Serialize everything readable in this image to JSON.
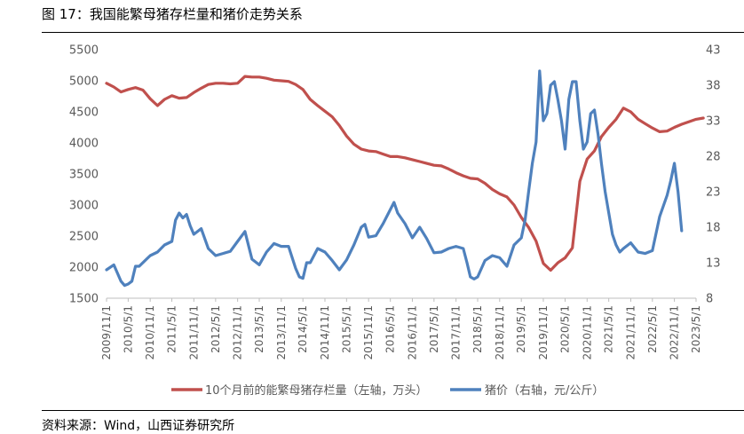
{
  "figure": {
    "title": "图 17：我国能繁母猪存栏量和猪价走势关系",
    "source": "资料来源：Wind，山西证券研究所"
  },
  "chart_data": {
    "type": "line",
    "x_tick_labels": [
      "2009/11/1",
      "2010/5/1",
      "2010/11/1",
      "2011/5/1",
      "2011/11/1",
      "2012/5/1",
      "2012/11/1",
      "2013/5/1",
      "2013/11/1",
      "2014/5/1",
      "2014/11/1",
      "2015/5/1",
      "2015/11/1",
      "2016/5/1",
      "2016/11/1",
      "2017/5/1",
      "2017/11/1",
      "2018/5/1",
      "2018/11/1",
      "2019/5/1",
      "2019/11/1",
      "2020/5/1",
      "2020/11/1",
      "2021/5/1",
      "2021/11/1",
      "2022/5/1",
      "2022/11/1",
      "2023/5/1"
    ],
    "y_left": {
      "range": [
        1500,
        5500
      ],
      "ticks": [
        1500,
        2000,
        2500,
        3000,
        3500,
        4000,
        4500,
        5000,
        5500
      ]
    },
    "y_right": {
      "range": [
        8,
        43
      ],
      "ticks": [
        8,
        13,
        18,
        23,
        28,
        33,
        38,
        43
      ]
    },
    "grid": false,
    "legend_position": "bottom",
    "colors": {
      "sows": "#c0504d",
      "hog": "#4f81bd"
    },
    "series": [
      {
        "name": "10个月前的能繁母猪存栏量（左轴，万头）",
        "axis": "left",
        "points": [
          [
            "2009/11/1",
            4960
          ],
          [
            "2010/1/1",
            4900
          ],
          [
            "2010/3/1",
            4820
          ],
          [
            "2010/5/1",
            4860
          ],
          [
            "2010/7/1",
            4890
          ],
          [
            "2010/9/1",
            4850
          ],
          [
            "2010/11/1",
            4710
          ],
          [
            "2011/1/1",
            4600
          ],
          [
            "2011/3/1",
            4700
          ],
          [
            "2011/5/1",
            4760
          ],
          [
            "2011/7/1",
            4720
          ],
          [
            "2011/9/1",
            4730
          ],
          [
            "2011/11/1",
            4810
          ],
          [
            "2012/1/1",
            4880
          ],
          [
            "2012/3/1",
            4940
          ],
          [
            "2012/5/1",
            4960
          ],
          [
            "2012/7/1",
            4960
          ],
          [
            "2012/9/1",
            4950
          ],
          [
            "2012/11/1",
            4960
          ],
          [
            "2013/1/1",
            5070
          ],
          [
            "2013/3/1",
            5060
          ],
          [
            "2013/5/1",
            5060
          ],
          [
            "2013/7/1",
            5040
          ],
          [
            "2013/9/1",
            5010
          ],
          [
            "2013/11/1",
            5000
          ],
          [
            "2014/1/1",
            4990
          ],
          [
            "2014/3/1",
            4940
          ],
          [
            "2014/5/1",
            4860
          ],
          [
            "2014/7/1",
            4700
          ],
          [
            "2014/9/1",
            4600
          ],
          [
            "2014/11/1",
            4510
          ],
          [
            "2015/1/1",
            4420
          ],
          [
            "2015/3/1",
            4280
          ],
          [
            "2015/5/1",
            4110
          ],
          [
            "2015/7/1",
            3980
          ],
          [
            "2015/9/1",
            3900
          ],
          [
            "2015/11/1",
            3870
          ],
          [
            "2016/1/1",
            3860
          ],
          [
            "2016/3/1",
            3820
          ],
          [
            "2016/5/1",
            3780
          ],
          [
            "2016/7/1",
            3780
          ],
          [
            "2016/9/1",
            3760
          ],
          [
            "2016/11/1",
            3730
          ],
          [
            "2017/1/1",
            3700
          ],
          [
            "2017/3/1",
            3670
          ],
          [
            "2017/5/1",
            3640
          ],
          [
            "2017/7/1",
            3630
          ],
          [
            "2017/9/1",
            3580
          ],
          [
            "2017/11/1",
            3520
          ],
          [
            "2018/1/1",
            3470
          ],
          [
            "2018/3/1",
            3430
          ],
          [
            "2018/5/1",
            3420
          ],
          [
            "2018/7/1",
            3350
          ],
          [
            "2018/9/1",
            3250
          ],
          [
            "2018/11/1",
            3180
          ],
          [
            "2019/1/1",
            3130
          ],
          [
            "2019/3/1",
            3000
          ],
          [
            "2019/5/1",
            2800
          ],
          [
            "2019/7/1",
            2640
          ],
          [
            "2019/9/1",
            2420
          ],
          [
            "2019/11/1",
            2060
          ],
          [
            "2020/1/1",
            1950
          ],
          [
            "2020/3/1",
            2070
          ],
          [
            "2020/5/1",
            2150
          ],
          [
            "2020/7/1",
            2310
          ],
          [
            "2020/9/1",
            3380
          ],
          [
            "2020/11/1",
            3740
          ],
          [
            "2021/1/1",
            3870
          ],
          [
            "2021/3/1",
            4100
          ],
          [
            "2021/5/1",
            4250
          ],
          [
            "2021/7/1",
            4380
          ],
          [
            "2021/9/1",
            4560
          ],
          [
            "2021/11/1",
            4500
          ],
          [
            "2022/1/1",
            4380
          ],
          [
            "2022/3/1",
            4310
          ],
          [
            "2022/5/1",
            4240
          ],
          [
            "2022/7/1",
            4180
          ],
          [
            "2022/9/1",
            4190
          ],
          [
            "2022/11/1",
            4250
          ],
          [
            "2023/1/1",
            4300
          ],
          [
            "2023/3/1",
            4340
          ],
          [
            "2023/5/1",
            4380
          ],
          [
            "2023/7/1",
            4400
          ]
        ]
      },
      {
        "name": "猪价（右轴，元/公斤）",
        "axis": "right",
        "points": [
          [
            "2009/11/1",
            12.0
          ],
          [
            "2010/1/1",
            12.7
          ],
          [
            "2010/2/1",
            11.5
          ],
          [
            "2010/3/1",
            10.4
          ],
          [
            "2010/4/1",
            9.8
          ],
          [
            "2010/5/1",
            10.0
          ],
          [
            "2010/6/1",
            10.4
          ],
          [
            "2010/7/1",
            12.5
          ],
          [
            "2010/8/1",
            12.5
          ],
          [
            "2010/10/1",
            13.5
          ],
          [
            "2010/11/1",
            14.0
          ],
          [
            "2011/1/1",
            14.5
          ],
          [
            "2011/3/1",
            15.5
          ],
          [
            "2011/5/1",
            16.0
          ],
          [
            "2011/6/1",
            19.0
          ],
          [
            "2011/7/1",
            20.0
          ],
          [
            "2011/8/1",
            19.3
          ],
          [
            "2011/9/1",
            19.8
          ],
          [
            "2011/10/1",
            18.2
          ],
          [
            "2011/11/1",
            17.0
          ],
          [
            "2012/1/1",
            17.8
          ],
          [
            "2012/3/1",
            15.0
          ],
          [
            "2012/5/1",
            14.0
          ],
          [
            "2012/7/1",
            14.3
          ],
          [
            "2012/9/1",
            14.6
          ],
          [
            "2012/11/1",
            16.0
          ],
          [
            "2013/1/1",
            17.4
          ],
          [
            "2013/3/1",
            13.5
          ],
          [
            "2013/5/1",
            12.7
          ],
          [
            "2013/7/1",
            14.5
          ],
          [
            "2013/9/1",
            15.7
          ],
          [
            "2013/11/1",
            15.3
          ],
          [
            "2014/1/1",
            15.3
          ],
          [
            "2014/3/1",
            12.2
          ],
          [
            "2014/4/1",
            11.0
          ],
          [
            "2014/5/1",
            10.8
          ],
          [
            "2014/6/1",
            13.0
          ],
          [
            "2014/7/1",
            13.0
          ],
          [
            "2014/9/1",
            15.0
          ],
          [
            "2014/11/1",
            14.5
          ],
          [
            "2015/1/1",
            13.3
          ],
          [
            "2015/3/1",
            12.0
          ],
          [
            "2015/5/1",
            13.4
          ],
          [
            "2015/7/1",
            15.5
          ],
          [
            "2015/9/1",
            18.0
          ],
          [
            "2015/10/1",
            18.4
          ],
          [
            "2015/11/1",
            16.6
          ],
          [
            "2016/1/1",
            16.8
          ],
          [
            "2016/3/1",
            18.5
          ],
          [
            "2016/5/1",
            20.5
          ],
          [
            "2016/6/1",
            21.5
          ],
          [
            "2016/7/1",
            20.0
          ],
          [
            "2016/9/1",
            18.5
          ],
          [
            "2016/11/1",
            16.5
          ],
          [
            "2017/1/1",
            18.0
          ],
          [
            "2017/3/1",
            16.4
          ],
          [
            "2017/5/1",
            14.4
          ],
          [
            "2017/7/1",
            14.5
          ],
          [
            "2017/9/1",
            15.0
          ],
          [
            "2017/11/1",
            15.3
          ],
          [
            "2018/1/1",
            15.0
          ],
          [
            "2018/2/1",
            13.0
          ],
          [
            "2018/3/1",
            11.0
          ],
          [
            "2018/4/1",
            10.7
          ],
          [
            "2018/5/1",
            11.0
          ],
          [
            "2018/7/1",
            13.3
          ],
          [
            "2018/9/1",
            14.0
          ],
          [
            "2018/11/1",
            13.7
          ],
          [
            "2019/1/1",
            12.5
          ],
          [
            "2019/3/1",
            15.5
          ],
          [
            "2019/5/1",
            16.5
          ],
          [
            "2019/6/1",
            19.0
          ],
          [
            "2019/7/1",
            23.0
          ],
          [
            "2019/8/1",
            27.0
          ],
          [
            "2019/9/1",
            30.0
          ],
          [
            "2019/10/1",
            40.0
          ],
          [
            "2019/11/1",
            33.0
          ],
          [
            "2019/12/1",
            34.0
          ],
          [
            "2020/1/1",
            38.0
          ],
          [
            "2020/2/1",
            38.5
          ],
          [
            "2020/3/1",
            36.0
          ],
          [
            "2020/4/1",
            33.0
          ],
          [
            "2020/5/1",
            29.0
          ],
          [
            "2020/6/1",
            36.0
          ],
          [
            "2020/7/1",
            38.5
          ],
          [
            "2020/8/1",
            38.5
          ],
          [
            "2020/9/1",
            33.0
          ],
          [
            "2020/10/1",
            29.0
          ],
          [
            "2020/11/1",
            30.0
          ],
          [
            "2020/12/1",
            34.0
          ],
          [
            "2021/1/1",
            34.5
          ],
          [
            "2021/2/1",
            31.0
          ],
          [
            "2021/3/1",
            27.0
          ],
          [
            "2021/4/1",
            23.0
          ],
          [
            "2021/5/1",
            20.0
          ],
          [
            "2021/6/1",
            17.0
          ],
          [
            "2021/7/1",
            15.5
          ],
          [
            "2021/8/1",
            14.5
          ],
          [
            "2021/9/1",
            15.0
          ],
          [
            "2021/11/1",
            15.8
          ],
          [
            "2022/1/1",
            14.5
          ],
          [
            "2022/3/1",
            14.3
          ],
          [
            "2022/5/1",
            14.7
          ],
          [
            "2022/7/1",
            19.5
          ],
          [
            "2022/8/1",
            21.0
          ],
          [
            "2022/9/1",
            22.5
          ],
          [
            "2022/10/1",
            24.5
          ],
          [
            "2022/11/1",
            27.0
          ],
          [
            "2022/12/1",
            23.0
          ],
          [
            "2023/1/1",
            17.5
          ]
        ]
      }
    ]
  }
}
